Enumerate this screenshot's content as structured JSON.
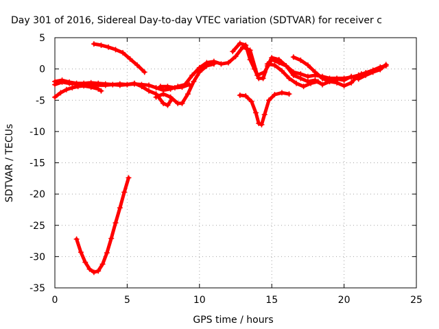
{
  "chart_data": {
    "type": "scatter",
    "title": "Day 301 of 2016, Sidereal Day-to-day VTEC variation (SDTVAR) for receiver c",
    "xlabel": "GPS time / hours",
    "ylabel": "SDTVAR / TECUs",
    "xlim": [
      0,
      25
    ],
    "ylim": [
      -35,
      5
    ],
    "xticks": [
      "0",
      "5",
      "10",
      "15",
      "20",
      "25"
    ],
    "yticks": [
      "5",
      "0",
      "-5",
      "-10",
      "-15",
      "-20",
      "-25",
      "-30",
      "-35"
    ],
    "grid": true,
    "legend": "none",
    "color": "#ff0000",
    "series": [
      {
        "values": [
          [
            0.0,
            -2.5
          ],
          [
            0.5,
            -2.1
          ],
          [
            1.0,
            -2.3
          ],
          [
            1.5,
            -2.4
          ],
          [
            2.0,
            -2.5
          ],
          [
            2.5,
            -2.6
          ],
          [
            3.0,
            -2.6
          ],
          [
            3.5,
            -2.6
          ],
          [
            4.0,
            -2.5
          ],
          [
            4.5,
            -2.6
          ],
          [
            5.0,
            -2.5
          ],
          [
            5.5,
            -2.4
          ],
          [
            6.0,
            -2.5
          ],
          [
            6.5,
            -2.6
          ],
          [
            7.0,
            -3.0
          ],
          [
            7.5,
            -3.4
          ],
          [
            8.0,
            -3.2
          ],
          [
            8.5,
            -2.8
          ],
          [
            9.0,
            -2.5
          ],
          [
            9.5,
            -1.0
          ],
          [
            10.0,
            0.2
          ],
          [
            10.5,
            1.0
          ],
          [
            11.0,
            1.2
          ],
          [
            11.5,
            0.8
          ],
          [
            12.0,
            1.0
          ],
          [
            12.5,
            2.0
          ],
          [
            13.0,
            3.5
          ],
          [
            13.5,
            3.0
          ],
          [
            14.0,
            -1.0
          ],
          [
            14.5,
            -0.5
          ],
          [
            15.0,
            1.5
          ],
          [
            15.5,
            1.0
          ],
          [
            16.0,
            0.5
          ],
          [
            16.5,
            -0.5
          ],
          [
            17.0,
            -0.8
          ],
          [
            17.5,
            -1.2
          ],
          [
            18.0,
            -1.0
          ],
          [
            18.5,
            -1.2
          ],
          [
            19.0,
            -1.5
          ],
          [
            19.5,
            -1.5
          ],
          [
            20.0,
            -1.5
          ],
          [
            20.5,
            -1.3
          ],
          [
            21.0,
            -1.0
          ],
          [
            21.5,
            -0.6
          ],
          [
            22.0,
            -0.2
          ],
          [
            22.5,
            0.3
          ],
          [
            22.9,
            0.5
          ]
        ]
      },
      {
        "values": [
          [
            0.0,
            -4.5
          ],
          [
            0.4,
            -3.8
          ],
          [
            0.8,
            -3.3
          ],
          [
            1.2,
            -3.0
          ],
          [
            1.6,
            -2.8
          ],
          [
            2.0,
            -2.7
          ],
          [
            2.5,
            -2.9
          ],
          [
            3.0,
            -3.2
          ],
          [
            3.2,
            -3.5
          ]
        ]
      },
      {
        "values": [
          [
            0.0,
            -2.0
          ],
          [
            0.5,
            -1.8
          ],
          [
            1.0,
            -2.1
          ],
          [
            1.5,
            -2.3
          ],
          [
            2.0,
            -2.3
          ],
          [
            2.5,
            -2.2
          ],
          [
            3.0,
            -2.3
          ],
          [
            3.5,
            -2.4
          ],
          [
            4.0,
            -2.5
          ],
          [
            4.5,
            -2.4
          ],
          [
            5.0,
            -2.5
          ],
          [
            5.5,
            -2.3
          ],
          [
            6.0,
            -2.8
          ],
          [
            6.5,
            -3.5
          ],
          [
            7.0,
            -4.0
          ],
          [
            7.5,
            -5.5
          ],
          [
            7.8,
            -5.8
          ],
          [
            8.1,
            -4.8
          ]
        ]
      },
      {
        "values": [
          [
            7.0,
            -4.5
          ],
          [
            7.5,
            -4.0
          ],
          [
            8.0,
            -4.5
          ],
          [
            8.5,
            -5.5
          ],
          [
            8.8,
            -5.5
          ],
          [
            9.2,
            -4.0
          ],
          [
            9.6,
            -2.0
          ],
          [
            10.0,
            -0.5
          ],
          [
            10.5,
            0.5
          ],
          [
            11.0,
            0.8
          ]
        ]
      },
      {
        "values": [
          [
            7.3,
            -2.8
          ],
          [
            7.8,
            -2.8
          ],
          [
            8.3,
            -3.0
          ],
          [
            8.8,
            -2.9
          ],
          [
            9.3,
            -2.5
          ]
        ]
      },
      {
        "values": [
          [
            2.7,
            4.0
          ],
          [
            3.2,
            3.8
          ],
          [
            3.7,
            3.5
          ],
          [
            4.2,
            3.1
          ],
          [
            4.7,
            2.6
          ],
          [
            5.2,
            1.6
          ],
          [
            5.7,
            0.6
          ],
          [
            6.2,
            -0.5
          ]
        ]
      },
      {
        "values": [
          [
            1.5,
            -27.2
          ],
          [
            1.8,
            -29.3
          ],
          [
            2.1,
            -30.9
          ],
          [
            2.4,
            -32.0
          ],
          [
            2.7,
            -32.5
          ],
          [
            3.0,
            -32.3
          ],
          [
            3.3,
            -31.2
          ],
          [
            3.6,
            -29.4
          ],
          [
            3.9,
            -27.1
          ],
          [
            4.2,
            -24.6
          ],
          [
            4.5,
            -22.2
          ],
          [
            4.8,
            -19.7
          ],
          [
            5.1,
            -17.4
          ]
        ]
      },
      {
        "values": [
          [
            12.8,
            -4.2
          ],
          [
            13.2,
            -4.3
          ],
          [
            13.6,
            -5.2
          ],
          [
            13.9,
            -7.0
          ],
          [
            14.1,
            -8.7
          ],
          [
            14.3,
            -8.9
          ],
          [
            14.5,
            -7.3
          ],
          [
            14.8,
            -5.0
          ],
          [
            15.2,
            -4.1
          ],
          [
            15.7,
            -3.8
          ],
          [
            16.2,
            -4.0
          ]
        ]
      },
      {
        "values": [
          [
            12.3,
            2.8
          ],
          [
            12.8,
            4.1
          ],
          [
            13.2,
            3.8
          ],
          [
            13.5,
            1.5
          ],
          [
            13.8,
            0.0
          ],
          [
            14.1,
            -1.5
          ],
          [
            14.4,
            -1.5
          ],
          [
            14.7,
            0.5
          ],
          [
            15.0,
            1.8
          ],
          [
            15.5,
            1.5
          ],
          [
            16.0,
            0.5
          ],
          [
            16.5,
            -1.0
          ],
          [
            17.0,
            -1.5
          ],
          [
            17.5,
            -2.0
          ],
          [
            18.0,
            -1.8
          ],
          [
            18.5,
            -2.5
          ],
          [
            19.0,
            -2.0
          ],
          [
            19.5,
            -1.8
          ]
        ]
      },
      {
        "values": [
          [
            16.5,
            1.9
          ],
          [
            17.0,
            1.4
          ],
          [
            17.5,
            0.6
          ],
          [
            18.0,
            -0.5
          ],
          [
            18.5,
            -1.5
          ],
          [
            19.0,
            -2.0
          ],
          [
            19.5,
            -2.2
          ],
          [
            20.0,
            -2.7
          ],
          [
            20.5,
            -2.2
          ],
          [
            21.0,
            -1.0
          ],
          [
            21.2,
            -0.8
          ]
        ]
      },
      {
        "values": [
          [
            14.7,
            0.8
          ],
          [
            15.2,
            0.6
          ],
          [
            15.7,
            -0.3
          ],
          [
            16.2,
            -1.5
          ],
          [
            16.7,
            -2.3
          ],
          [
            17.2,
            -2.8
          ],
          [
            17.7,
            -2.3
          ],
          [
            18.2,
            -2.0
          ]
        ]
      },
      {
        "values": [
          [
            18.5,
            -1.5
          ],
          [
            19.0,
            -1.7
          ],
          [
            19.5,
            -1.6
          ],
          [
            20.0,
            -1.8
          ],
          [
            20.5,
            -1.2
          ],
          [
            21.0,
            -1.6
          ],
          [
            21.5,
            -1.0
          ],
          [
            22.0,
            -0.5
          ],
          [
            22.5,
            -0.1
          ],
          [
            22.9,
            0.7
          ]
        ]
      }
    ]
  }
}
